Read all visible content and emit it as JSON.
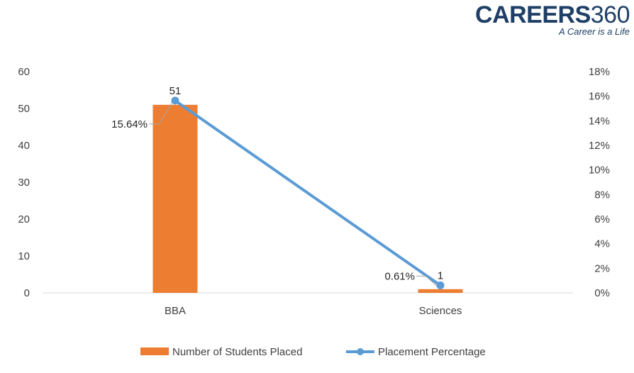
{
  "logo": {
    "brand_text": "CAREERS",
    "brand_number": "360",
    "tagline": "A Career is a Life"
  },
  "colors": {
    "bar": "#ED7D31",
    "line": "#5B9BD5",
    "axis_line": "#D9D9D9",
    "leader": "#A6A6A6"
  },
  "chart_data": {
    "type": "bar",
    "categories": [
      "BBA",
      "Sciences"
    ],
    "series": [
      {
        "name": "Number of Students Placed",
        "kind": "bar",
        "axis": "left",
        "values": [
          51,
          1
        ],
        "data_labels": [
          "51",
          "1"
        ]
      },
      {
        "name": "Placement Percentage",
        "kind": "line",
        "axis": "right",
        "values": [
          15.64,
          0.61
        ],
        "data_labels": [
          "15.64%",
          "0.61%"
        ]
      }
    ],
    "y_left": {
      "range": [
        0,
        60
      ],
      "ticks": [
        "0",
        "10",
        "20",
        "30",
        "40",
        "50",
        "60"
      ]
    },
    "y_right": {
      "range": [
        0,
        18
      ],
      "ticks": [
        "0%",
        "2%",
        "4%",
        "6%",
        "8%",
        "10%",
        "12%",
        "14%",
        "16%",
        "18%"
      ]
    },
    "grid": false,
    "legend_position": "bottom"
  }
}
